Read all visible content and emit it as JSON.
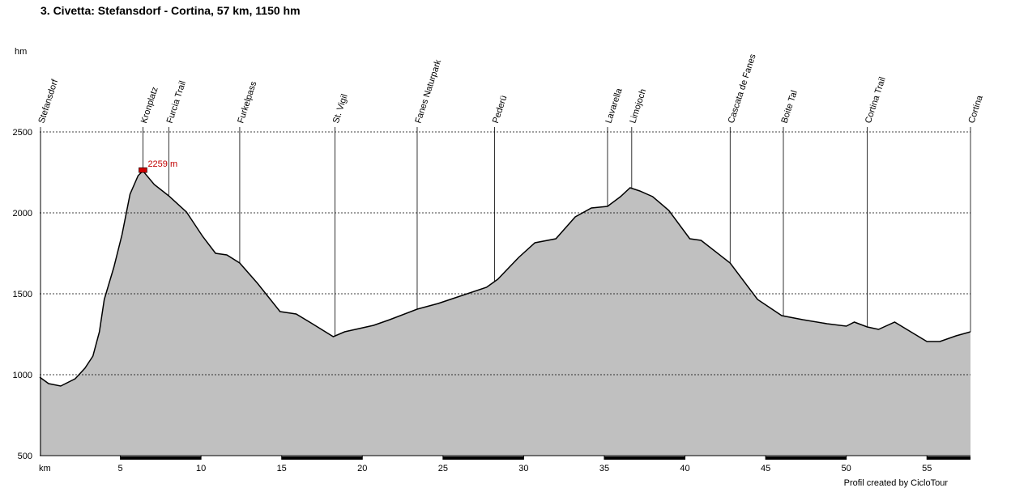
{
  "chart_data": {
    "type": "area",
    "title": "3. Civetta: Stefansdorf - Cortina, 57 km, 1150 hm",
    "y_label": "hm",
    "x_label": "km",
    "footer": "Profil created by CicloTour",
    "annotation": {
      "text": "2259 m",
      "x": 6.4,
      "y": 2259
    },
    "color": "#c0c0c0",
    "line_color": "#000000",
    "grid": true,
    "xlim": [
      0,
      57.7
    ],
    "ylim": [
      500,
      2500
    ],
    "xticks": [
      5,
      10,
      15,
      20,
      25,
      30,
      35,
      40,
      45,
      50,
      55
    ],
    "yticks": [
      500,
      1000,
      1500,
      2000,
      2500
    ],
    "x": [
      0,
      0.55,
      1.3,
      2.2,
      2.8,
      3.3,
      3.7,
      4.0,
      4.6,
      5.1,
      5.6,
      6.1,
      6.4,
      7.1,
      8.0,
      9.1,
      10.1,
      10.9,
      11.6,
      12.4,
      13.5,
      14.9,
      15.9,
      16.9,
      18.2,
      18.9,
      20.7,
      21.7,
      23.4,
      24.7,
      26.2,
      27.7,
      28.4,
      29.7,
      30.7,
      32.0,
      33.2,
      34.2,
      35.2,
      36.0,
      36.6,
      37.2,
      38.0,
      39.0,
      40.3,
      41.0,
      42.8,
      44.5,
      46.0,
      47.3,
      48.8,
      50.0,
      50.5,
      51.3,
      52.0,
      53.0,
      54.0,
      55.0,
      55.8,
      56.8,
      57.7
    ],
    "values": [
      985,
      945,
      930,
      975,
      1040,
      1115,
      1265,
      1465,
      1665,
      1865,
      2115,
      2230,
      2259,
      2175,
      2105,
      2005,
      1855,
      1750,
      1740,
      1690,
      1565,
      1390,
      1375,
      1315,
      1235,
      1265,
      1305,
      1340,
      1405,
      1440,
      1490,
      1540,
      1590,
      1725,
      1815,
      1840,
      1975,
      2030,
      2040,
      2100,
      2155,
      2135,
      2100,
      2015,
      1840,
      1830,
      1690,
      1465,
      1365,
      1340,
      1315,
      1300,
      1325,
      1295,
      1280,
      1325,
      1265,
      1205,
      1205,
      1240,
      1265
    ],
    "waypoints": [
      {
        "name": "Stefansdorf",
        "x": 0.05
      },
      {
        "name": "Kronplatz",
        "x": 6.4
      },
      {
        "name": "Furcia Trail",
        "x": 8.0
      },
      {
        "name": "Furkelpass",
        "x": 12.4
      },
      {
        "name": "St. Vigil",
        "x": 18.3
      },
      {
        "name": "Fanes Naturpark",
        "x": 23.4
      },
      {
        "name": "Pederü",
        "x": 28.2
      },
      {
        "name": "Lavarella",
        "x": 35.2
      },
      {
        "name": "Limojoch",
        "x": 36.7
      },
      {
        "name": "Cascata de Fanes",
        "x": 42.8
      },
      {
        "name": "Boite Tal",
        "x": 46.1
      },
      {
        "name": "Cortina Trail",
        "x": 51.3
      },
      {
        "name": "Cortina",
        "x": 57.7
      }
    ]
  }
}
